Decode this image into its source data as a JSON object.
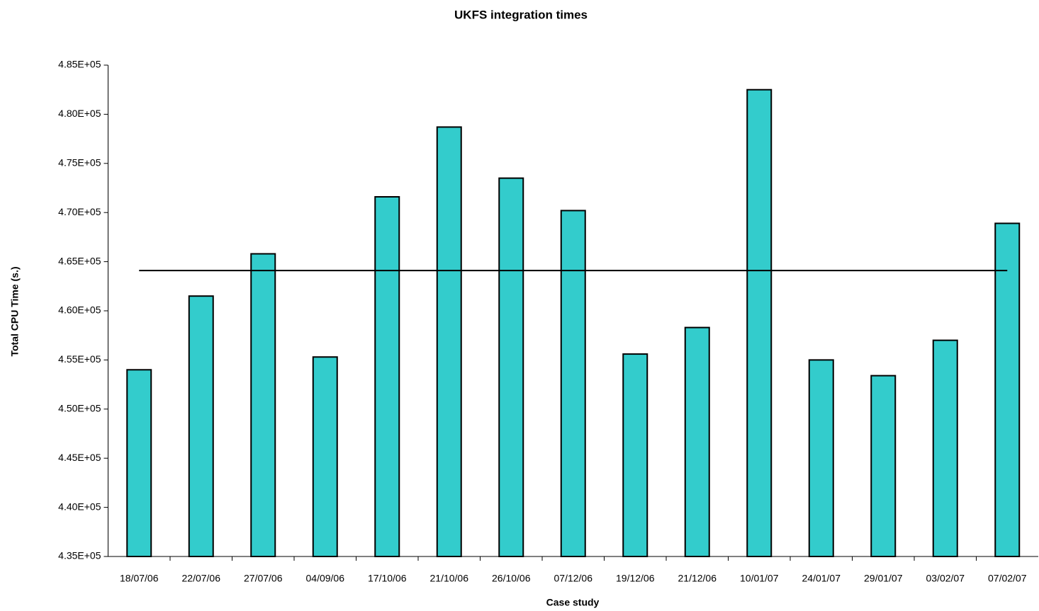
{
  "chart_data": {
    "type": "bar",
    "title": "UKFS integration times",
    "x_label": "Case study",
    "y_label": "Total CPU Time (s.)",
    "categories": [
      "18/07/06",
      "22/07/06",
      "27/07/06",
      "04/09/06",
      "17/10/06",
      "21/10/06",
      "26/10/06",
      "07/12/06",
      "19/12/06",
      "21/12/06",
      "10/01/07",
      "24/01/07",
      "29/01/07",
      "03/02/07",
      "07/02/07"
    ],
    "values": [
      454000,
      461500,
      465800,
      455300,
      471600,
      478700,
      473500,
      470200,
      455600,
      458300,
      482500,
      455000,
      453400,
      457000,
      468900
    ],
    "hline": 464100,
    "color": "#33cccc",
    "ylim": [
      435000,
      485000
    ],
    "yticks": [
      {
        "value": 435000,
        "label": "4.35E+05"
      },
      {
        "value": 440000,
        "label": "4.40E+05"
      },
      {
        "value": 445000,
        "label": "4.45E+05"
      },
      {
        "value": 450000,
        "label": "4.50E+05"
      },
      {
        "value": 455000,
        "label": "4.55E+05"
      },
      {
        "value": 460000,
        "label": "4.60E+05"
      },
      {
        "value": 465000,
        "label": "4.65E+05"
      },
      {
        "value": 470000,
        "label": "4.70E+05"
      },
      {
        "value": 475000,
        "label": "4.75E+05"
      },
      {
        "value": 480000,
        "label": "4.80E+05"
      },
      {
        "value": 485000,
        "label": "4.85E+05"
      }
    ],
    "grid": false
  }
}
